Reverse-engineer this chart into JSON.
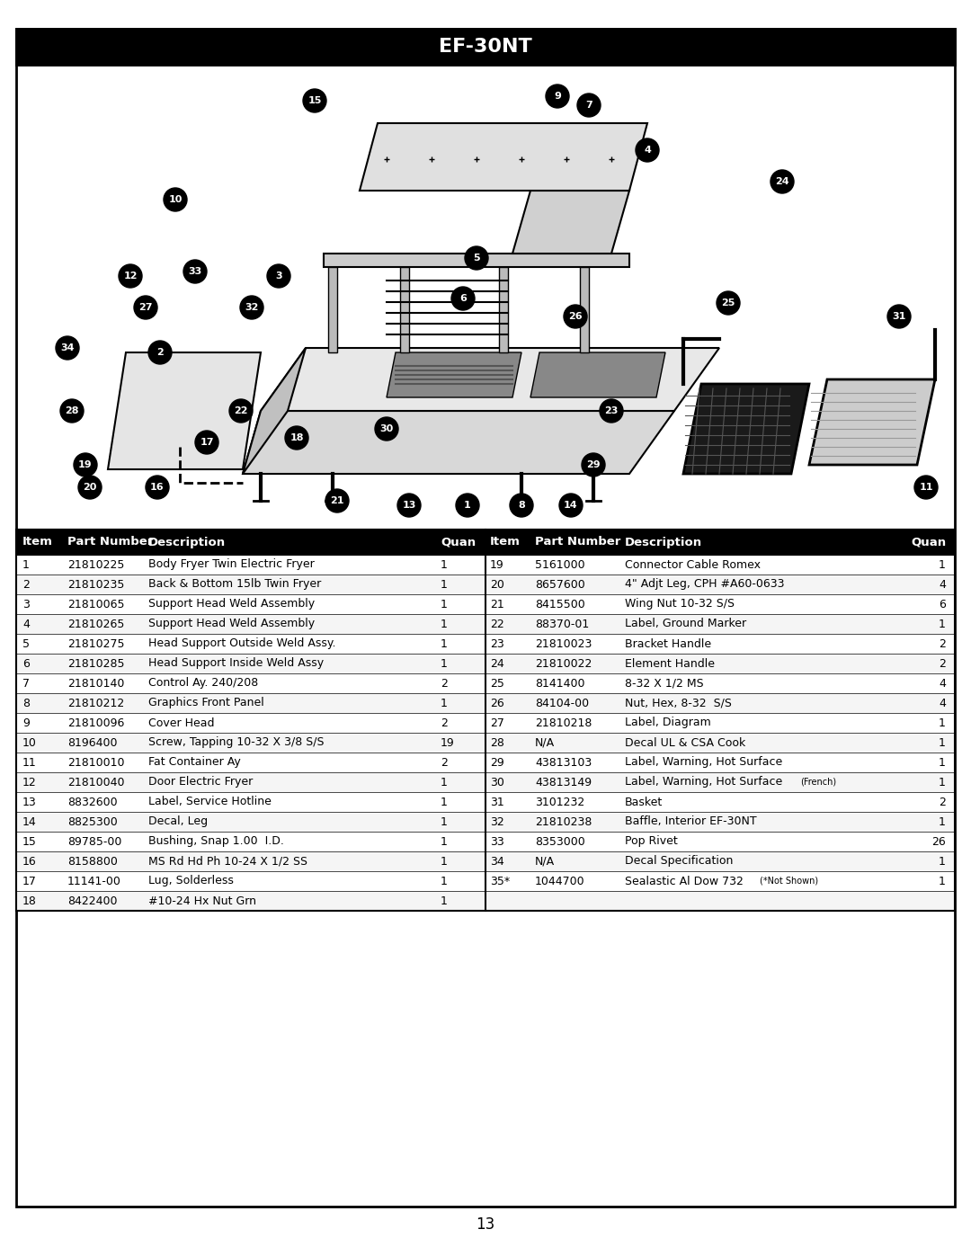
{
  "title": "EF-30NT",
  "page_number": "13",
  "background_color": "#ffffff",
  "border_color": "#000000",
  "header_bg": "#000000",
  "header_text_color": "#ffffff",
  "table_header_bg": "#000000",
  "table_header_text": "#ffffff",
  "table_row_bg_odd": "#ffffff",
  "table_row_bg_even": "#f0f0f0",
  "table_border": "#000000",
  "parts_left": [
    {
      "item": "1",
      "part": "21810225",
      "desc": "Body Fryer Twin Electric Fryer",
      "quan": "1"
    },
    {
      "item": "2",
      "part": "21810235",
      "desc": "Back & Bottom 15lb Twin Fryer",
      "quan": "1"
    },
    {
      "item": "3",
      "part": "21810065",
      "desc": "Support Head Weld Assembly",
      "quan": "1"
    },
    {
      "item": "4",
      "part": "21810265",
      "desc": "Support Head Weld Assembly",
      "quan": "1"
    },
    {
      "item": "5",
      "part": "21810275",
      "desc": "Head Support Outside Weld Assy.",
      "quan": "1"
    },
    {
      "item": "6",
      "part": "21810285",
      "desc": "Head Support Inside Weld Assy",
      "quan": "1"
    },
    {
      "item": "7",
      "part": "21810140",
      "desc": "Control Ay. 240/208",
      "quan": "2"
    },
    {
      "item": "8",
      "part": "21810212",
      "desc": "Graphics Front Panel",
      "quan": "1"
    },
    {
      "item": "9",
      "part": "21810096",
      "desc": "Cover Head",
      "quan": "2"
    },
    {
      "item": "10",
      "part": "8196400",
      "desc": "Screw, Tapping 10-32 X 3/8 S/S",
      "quan": "19"
    },
    {
      "item": "11",
      "part": "21810010",
      "desc": "Fat Container Ay",
      "quan": "2"
    },
    {
      "item": "12",
      "part": "21810040",
      "desc": "Door Electric Fryer",
      "quan": "1"
    },
    {
      "item": "13",
      "part": "8832600",
      "desc": "Label, Service Hotline",
      "quan": "1"
    },
    {
      "item": "14",
      "part": "8825300",
      "desc": "Decal, Leg",
      "quan": "1"
    },
    {
      "item": "15",
      "part": "89785-00",
      "desc": "Bushing, Snap 1.00  I.D.",
      "quan": "1"
    },
    {
      "item": "16",
      "part": "8158800",
      "desc": "MS Rd Hd Ph 10-24 X 1/2 SS",
      "quan": "1"
    },
    {
      "item": "17",
      "part": "11141-00",
      "desc": "Lug, Solderless",
      "quan": "1"
    },
    {
      "item": "18",
      "part": "8422400",
      "desc": "#10-24 Hx Nut Grn",
      "quan": "1"
    }
  ],
  "parts_right": [
    {
      "item": "19",
      "part": "5161000",
      "desc": "Connector Cable Romex",
      "quan": "1"
    },
    {
      "item": "20",
      "part": "8657600",
      "desc": "4\" Adjt Leg, CPH #A60-0633",
      "quan": "4"
    },
    {
      "item": "21",
      "part": "8415500",
      "desc": "Wing Nut 10-32 S/S",
      "quan": "6"
    },
    {
      "item": "22",
      "part": "88370-01",
      "desc": "Label, Ground Marker",
      "quan": "1"
    },
    {
      "item": "23",
      "part": "21810023",
      "desc": "Bracket Handle",
      "quan": "2"
    },
    {
      "item": "24",
      "part": "21810022",
      "desc": "Element Handle",
      "quan": "2"
    },
    {
      "item": "25",
      "part": "8141400",
      "desc": "8-32 X 1/2 MS",
      "quan": "4"
    },
    {
      "item": "26",
      "part": "84104-00",
      "desc": "Nut, Hex, 8-32  S/S",
      "quan": "4"
    },
    {
      "item": "27",
      "part": "21810218",
      "desc": "Label, Diagram",
      "quan": "1"
    },
    {
      "item": "28",
      "part": "N/A",
      "desc": "Decal UL & CSA Cook",
      "quan": "1"
    },
    {
      "item": "29",
      "part": "43813103",
      "desc": "Label, Warning, Hot Surface",
      "quan": "1"
    },
    {
      "item": "30",
      "part": "43813149",
      "desc": "Label, Warning, Hot Surface (French)",
      "quan": "1"
    },
    {
      "item": "31",
      "part": "3101232",
      "desc": "Basket",
      "quan": "2"
    },
    {
      "item": "32",
      "part": "21810238",
      "desc": "Baffle, Interior EF-30NT",
      "quan": "1"
    },
    {
      "item": "33",
      "part": "8353000",
      "desc": "Pop Rivet",
      "quan": "26"
    },
    {
      "item": "34",
      "part": "N/A",
      "desc": "Decal Specification",
      "quan": "1"
    },
    {
      "item": "35*",
      "part": "1044700",
      "desc": "Sealastic Al Dow 732 (*Not Shown)",
      "quan": "1"
    }
  ]
}
